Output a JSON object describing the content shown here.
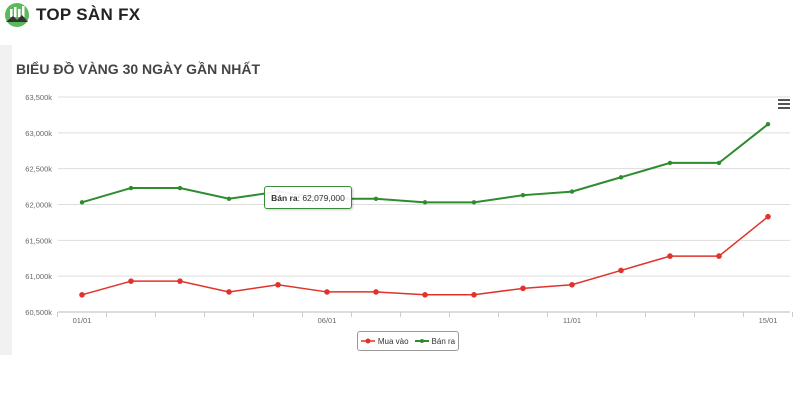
{
  "brand": {
    "name": "TOP SÀN FX"
  },
  "colors": {
    "buy": "#e0332b",
    "sell": "#2e8b2e"
  },
  "chart_data": {
    "type": "line",
    "title": "BIỂU ĐỒ VÀNG 30 NGÀY GẦN NHẤT",
    "x": [
      "01/01",
      "02/01",
      "03/01",
      "04/01",
      "05/01",
      "06/01",
      "07/01",
      "08/01",
      "09/01",
      "10/01",
      "11/01",
      "12/01",
      "13/01",
      "14/01",
      "15/01"
    ],
    "x_tick_labels": [
      {
        "index": 0,
        "label": "01/01"
      },
      {
        "index": 5,
        "label": "06/01"
      },
      {
        "index": 10,
        "label": "11/01"
      },
      {
        "index": 14,
        "label": "15/01"
      }
    ],
    "ylim": [
      60500,
      63500
    ],
    "y_ticks": [
      60500,
      61000,
      61500,
      62000,
      62500,
      63000,
      63500
    ],
    "y_tick_labels": [
      "60,500k",
      "61,000k",
      "61,500k",
      "62,000k",
      "62,500k",
      "63,000k",
      "63,500k"
    ],
    "unit": "thousand VND",
    "grid": true,
    "legend_position": "bottom-center",
    "series": [
      {
        "name": "Mua vào",
        "color": "#e0332b",
        "values": [
          60740,
          60930,
          60930,
          60780,
          60880,
          60780,
          60780,
          60740,
          60740,
          60830,
          60880,
          61080,
          61280,
          61280,
          61830
        ]
      },
      {
        "name": "Bán ra",
        "color": "#2e8b2e",
        "values": [
          62030,
          62230,
          62230,
          62080,
          62180,
          62080,
          62080,
          62030,
          62030,
          62130,
          62180,
          62380,
          62580,
          62580,
          63120
        ]
      }
    ],
    "tooltip": {
      "series": "Bán ra",
      "value": "62,079,000"
    }
  }
}
